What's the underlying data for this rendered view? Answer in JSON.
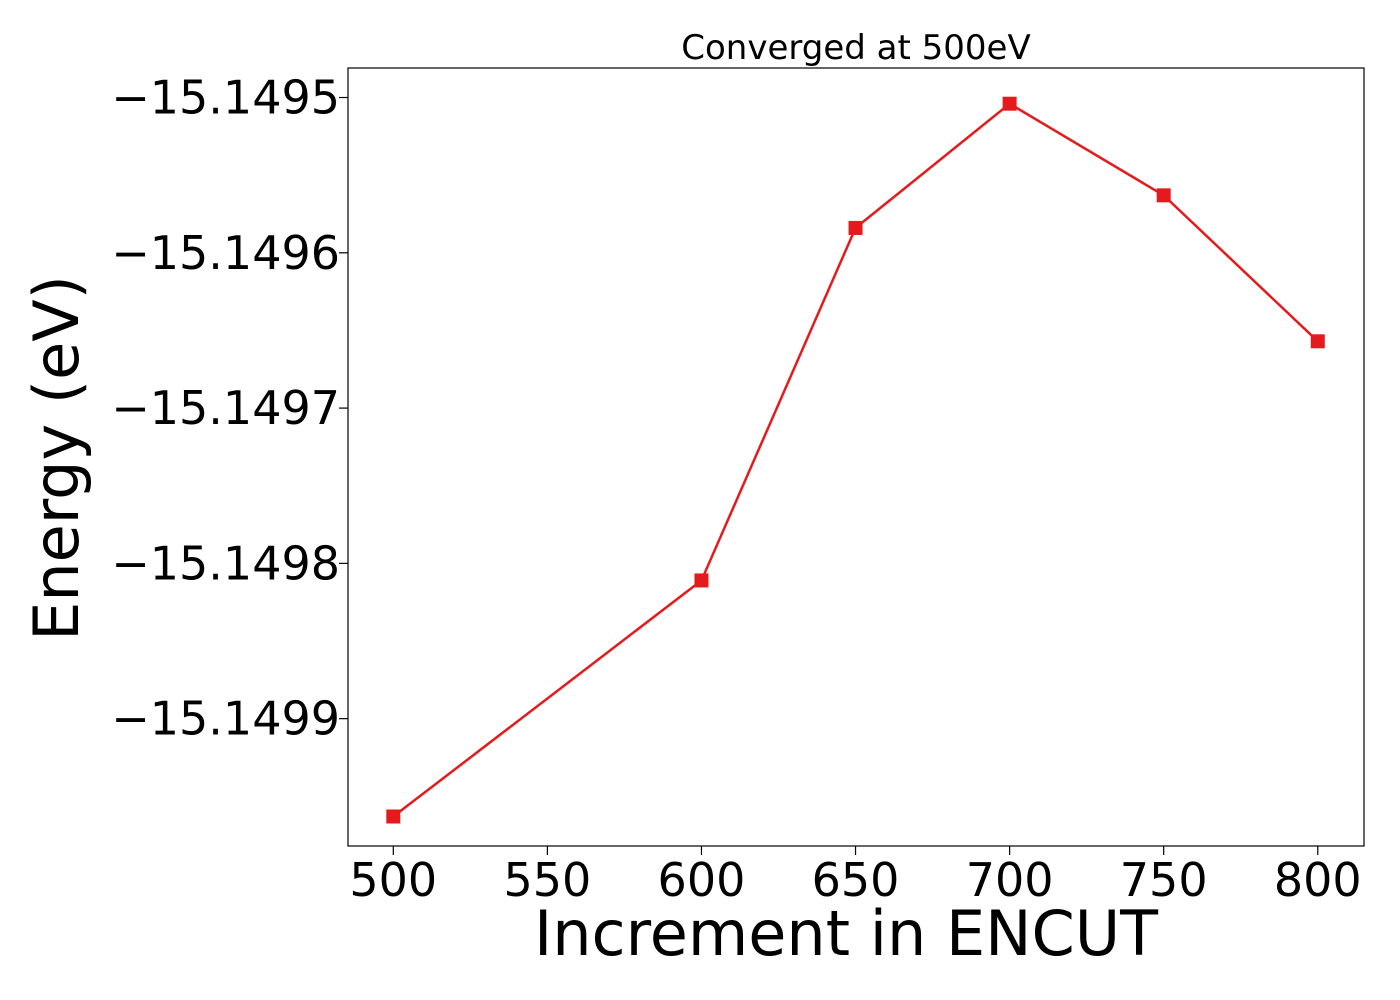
{
  "chart_data": {
    "type": "line",
    "title": "Converged at 500eV",
    "xlabel": "Increment in ENCUT",
    "ylabel": "Energy (eV)",
    "xlim": [
      485.3,
      815.0
    ],
    "ylim": [
      -15.149982,
      -15.149481
    ],
    "xticks": [
      500,
      550,
      600,
      650,
      700,
      750,
      800
    ],
    "xtick_labels": [
      "500",
      "550",
      "600",
      "650",
      "700",
      "750",
      "800"
    ],
    "yticks": [
      -15.1495,
      -15.1496,
      -15.1497,
      -15.1498,
      -15.1499
    ],
    "ytick_labels": [
      "−15.1495",
      "−15.1496",
      "−15.1497",
      "−15.1498",
      "−15.1499"
    ],
    "grid": false,
    "legend": "none",
    "series": [
      {
        "color": "#e41a1c",
        "marker": "square",
        "x": [
          500,
          600,
          650,
          700,
          750,
          800
        ],
        "y": [
          -15.149963,
          -15.149811,
          -15.149584,
          -15.149504,
          -15.149563,
          -15.149657
        ]
      }
    ]
  }
}
